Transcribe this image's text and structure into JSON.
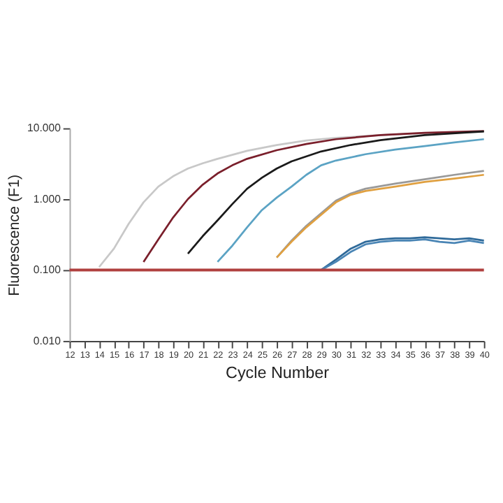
{
  "chart_data": {
    "type": "line",
    "xlabel": "Cycle Number",
    "ylabel": "Fluorescence (F1)",
    "log": "y",
    "grid": false,
    "legend": false,
    "marker": "none",
    "line_style": "solid",
    "xlim": [
      12,
      40
    ],
    "xticks": [
      12,
      13,
      14,
      15,
      16,
      17,
      18,
      19,
      20,
      21,
      22,
      23,
      24,
      25,
      26,
      27,
      28,
      29,
      30,
      31,
      32,
      33,
      34,
      35,
      36,
      37,
      38,
      39,
      40
    ],
    "ylim": [
      0.01,
      10
    ],
    "yticks": [
      {
        "value": 0.01,
        "label": "0.010"
      },
      {
        "value": 0.1,
        "label": "0.100"
      },
      {
        "value": 1,
        "label": "1.000"
      },
      {
        "value": 10,
        "label": "10.000"
      }
    ],
    "ref_lines": [
      {
        "axis": "y",
        "value": 0.1,
        "color": "#b0403f"
      }
    ],
    "series": [
      {
        "color": "#c8c8c8",
        "x": [
          14,
          15,
          16,
          17,
          18,
          19,
          20,
          21,
          22,
          24,
          26,
          28,
          30,
          33,
          36,
          40
        ],
        "values": [
          0.11,
          0.2,
          0.45,
          0.9,
          1.5,
          2.1,
          2.7,
          3.2,
          3.7,
          4.8,
          5.8,
          6.7,
          7.3,
          8.0,
          8.5,
          8.9
        ]
      },
      {
        "color": "#7a1f2b",
        "x": [
          17,
          18,
          19,
          20,
          21,
          22,
          23,
          24,
          26,
          28,
          30,
          33,
          36,
          40
        ],
        "values": [
          0.13,
          0.27,
          0.55,
          1.0,
          1.6,
          2.3,
          3.0,
          3.7,
          4.9,
          6.0,
          7.0,
          8.0,
          8.6,
          9.1
        ]
      },
      {
        "color": "#1a1a1a",
        "x": [
          20,
          21,
          22,
          23,
          24,
          25,
          26,
          27,
          29,
          31,
          33,
          36,
          40
        ],
        "values": [
          0.17,
          0.3,
          0.5,
          0.85,
          1.4,
          2.0,
          2.7,
          3.4,
          4.7,
          5.8,
          6.8,
          8.0,
          9.0
        ]
      },
      {
        "color": "#5ba3c4",
        "x": [
          22,
          23,
          24,
          25,
          26,
          27,
          28,
          29,
          30,
          32,
          34,
          36,
          38,
          40
        ],
        "values": [
          0.13,
          0.22,
          0.4,
          0.7,
          1.05,
          1.5,
          2.2,
          3.0,
          3.5,
          4.3,
          5.0,
          5.6,
          6.3,
          7.0
        ]
      },
      {
        "color": "#999999",
        "x": [
          26,
          27,
          28,
          29,
          30,
          31,
          32,
          34,
          36,
          38,
          40
        ],
        "values": [
          0.15,
          0.26,
          0.42,
          0.63,
          0.95,
          1.2,
          1.4,
          1.65,
          1.9,
          2.2,
          2.5
        ]
      },
      {
        "color": "#e0a040",
        "x": [
          26,
          27,
          28,
          29,
          30,
          31,
          32,
          34,
          36,
          38,
          40
        ],
        "values": [
          0.15,
          0.25,
          0.4,
          0.6,
          0.9,
          1.15,
          1.3,
          1.5,
          1.75,
          1.95,
          2.2
        ]
      },
      {
        "color": "#2f6a9a",
        "x": [
          29,
          30,
          31,
          32,
          33,
          34,
          35,
          36,
          37,
          38,
          39,
          40
        ],
        "values": [
          0.1,
          0.14,
          0.2,
          0.25,
          0.27,
          0.28,
          0.28,
          0.29,
          0.28,
          0.27,
          0.28,
          0.26
        ]
      },
      {
        "color": "#4a85b5",
        "x": [
          29,
          30,
          31,
          32,
          33,
          34,
          35,
          36,
          37,
          38,
          39,
          40
        ],
        "values": [
          0.1,
          0.13,
          0.18,
          0.23,
          0.25,
          0.26,
          0.26,
          0.27,
          0.25,
          0.24,
          0.26,
          0.24
        ]
      }
    ]
  }
}
